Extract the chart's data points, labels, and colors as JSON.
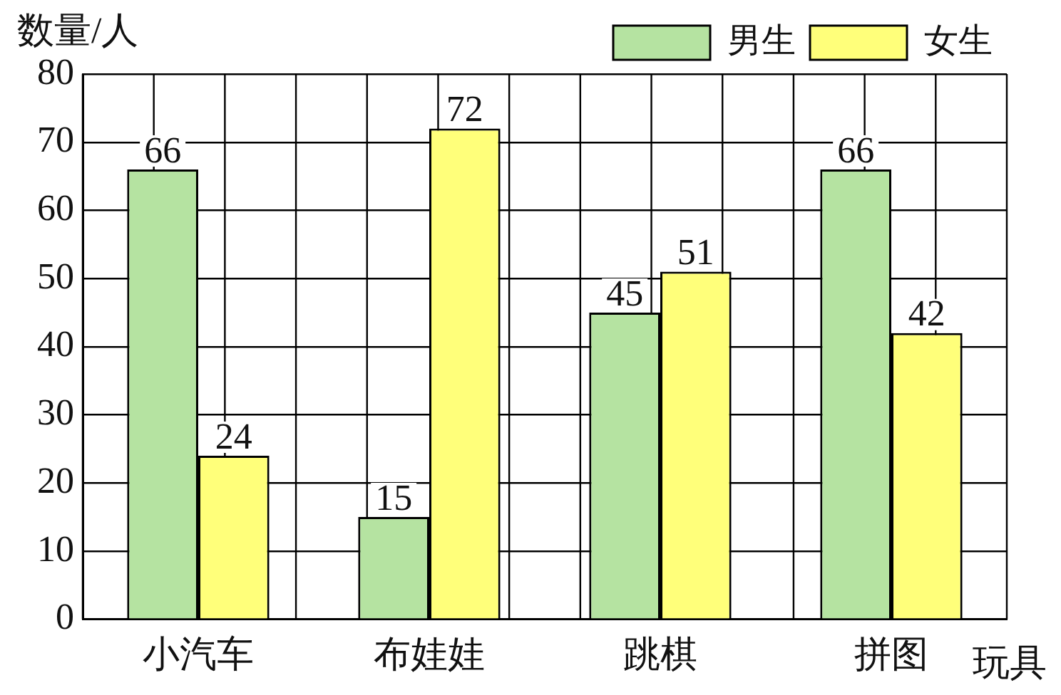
{
  "chart_data": {
    "type": "bar",
    "ylabel": "数量/人",
    "xlabel": "玩具",
    "categories": [
      "小汽车",
      "布娃娃",
      "跳棋",
      "拼图"
    ],
    "series": [
      {
        "name": "男生",
        "color": "#b5e3a1",
        "values": [
          66,
          15,
          45,
          66
        ]
      },
      {
        "name": "女生",
        "color": "#ffff7a",
        "values": [
          24,
          72,
          51,
          42
        ]
      }
    ],
    "ylim": [
      0,
      80
    ],
    "yticks": [
      0,
      10,
      20,
      30,
      40,
      50,
      60,
      70,
      80
    ],
    "grid": true,
    "legend": "top right",
    "data_labels": true
  }
}
